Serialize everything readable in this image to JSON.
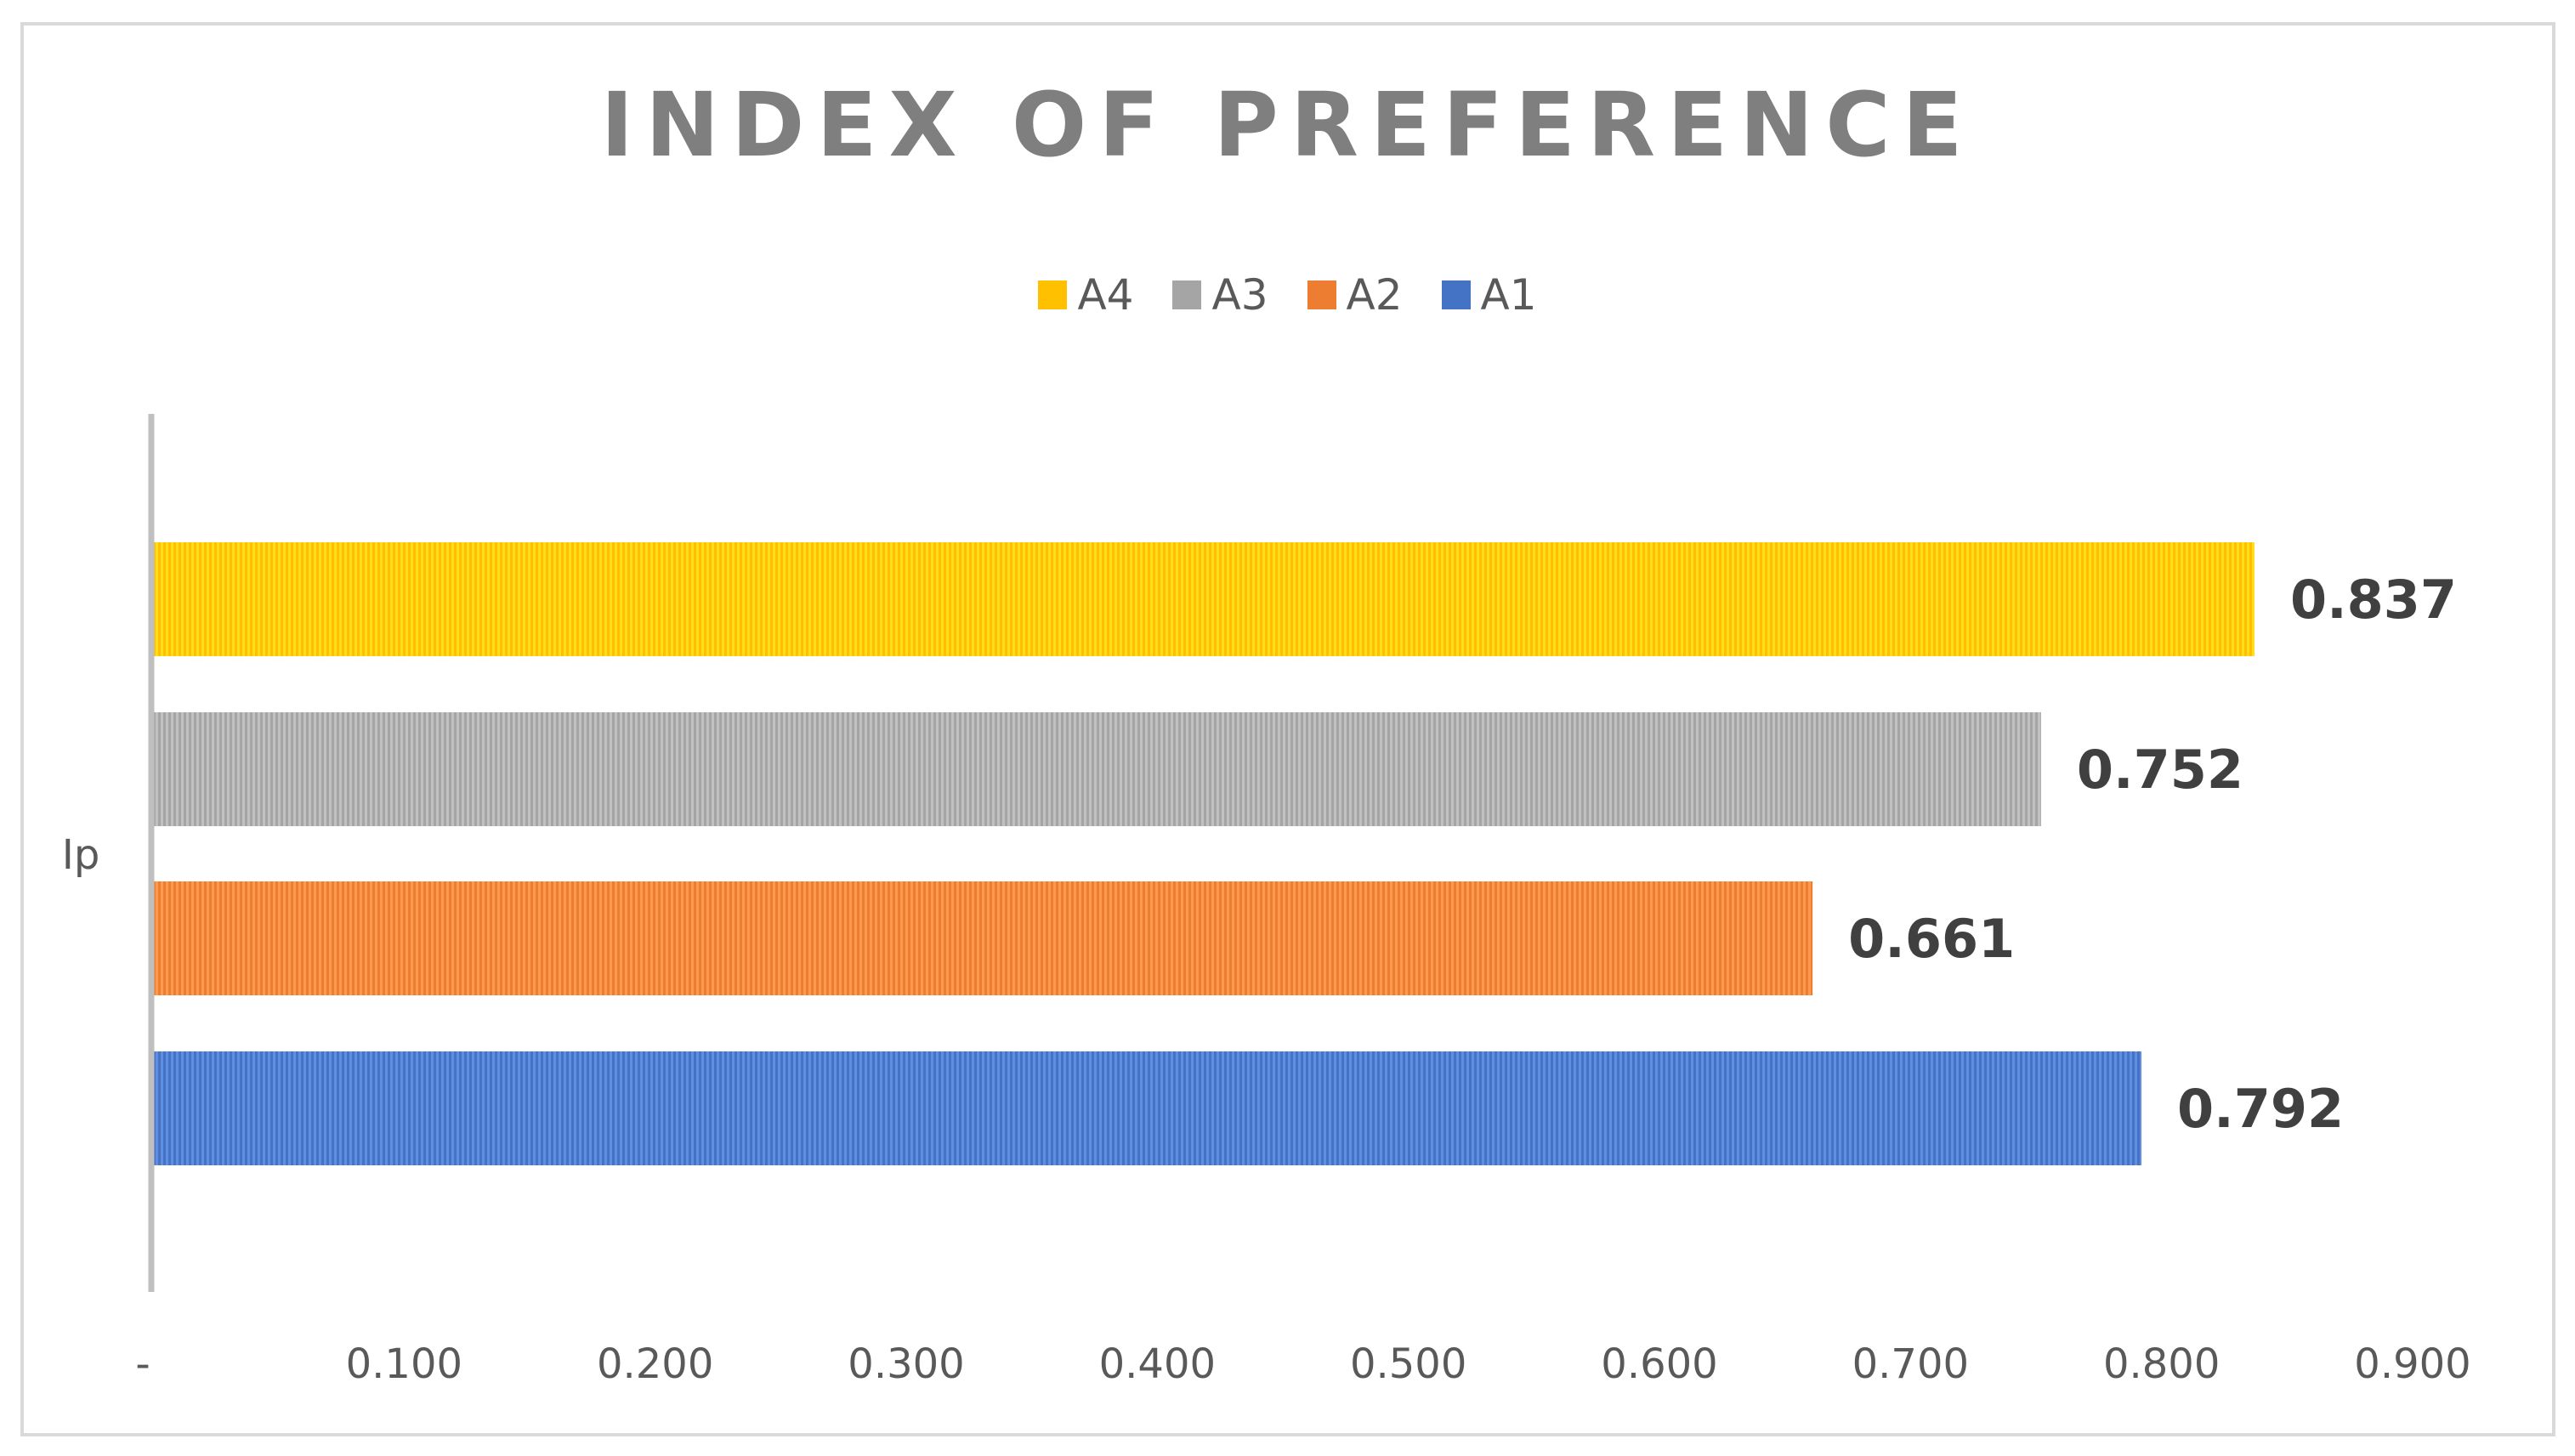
{
  "chart_data": {
    "type": "bar",
    "orientation": "horizontal",
    "title": "INDEX OF PREFERENCE",
    "categories": [
      "Ip"
    ],
    "series": [
      {
        "name": "A1",
        "values": [
          0.792
        ],
        "color": "#4472c4"
      },
      {
        "name": "A2",
        "values": [
          0.661
        ],
        "color": "#ed7d31"
      },
      {
        "name": "A3",
        "values": [
          0.752
        ],
        "color": "#a5a5a5"
      },
      {
        "name": "A4",
        "values": [
          0.837
        ],
        "color": "#ffc000"
      }
    ],
    "data_labels": [
      "0.792",
      "0.661",
      "0.752",
      "0.837"
    ],
    "legend": {
      "position": "top",
      "order": [
        "A4",
        "A3",
        "A2",
        "A1"
      ]
    },
    "x_axis": {
      "range": [
        0,
        0.9
      ],
      "tick_values": [
        0,
        0.1,
        0.2,
        0.3,
        0.4,
        0.5,
        0.6,
        0.7,
        0.8,
        0.9
      ],
      "tick_labels": [
        "-",
        "0.100",
        "0.200",
        "0.300",
        "0.400",
        "0.500",
        "0.600",
        "0.700",
        "0.800",
        "0.900"
      ]
    },
    "grid": false,
    "xlabel": "",
    "ylabel": ""
  }
}
